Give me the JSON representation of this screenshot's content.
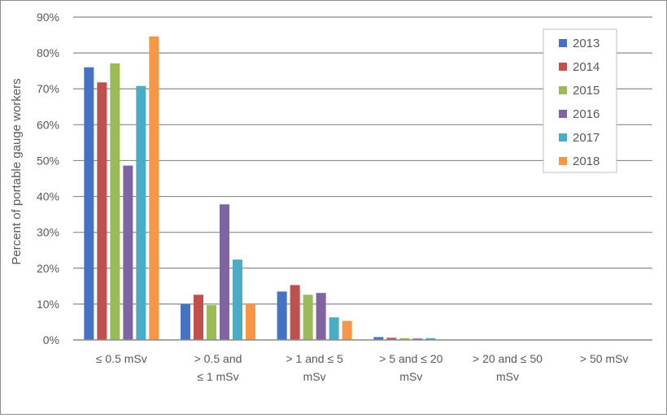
{
  "chart_data": {
    "type": "bar",
    "title": "",
    "xlabel": "",
    "ylabel": "Percent of portable gauge workers",
    "ylim": [
      0,
      90
    ],
    "y_ticks": [
      "0%",
      "10%",
      "20%",
      "30%",
      "40%",
      "50%",
      "60%",
      "70%",
      "80%",
      "90%"
    ],
    "grid": true,
    "legend_position": "top-right",
    "categories": [
      [
        "≤ 0.5 mSv"
      ],
      [
        "> 0.5 and",
        "≤ 1 mSv"
      ],
      [
        "> 1 and ≤ 5",
        "mSv"
      ],
      [
        "> 5 and ≤ 20",
        "mSv"
      ],
      [
        "> 20 and ≤ 50",
        "mSv"
      ],
      [
        "> 50 mSv"
      ]
    ],
    "series": [
      {
        "name": "2013",
        "color": "#4472C4",
        "values": [
          76.0,
          10.0,
          13.5,
          0.8,
          0.0,
          0.0
        ]
      },
      {
        "name": "2014",
        "color": "#C0504D",
        "values": [
          71.8,
          12.6,
          15.3,
          0.6,
          0.0,
          0.0
        ]
      },
      {
        "name": "2015",
        "color": "#9BBB59",
        "values": [
          77.1,
          9.7,
          12.6,
          0.5,
          0.0,
          0.0
        ]
      },
      {
        "name": "2016",
        "color": "#8064A2",
        "values": [
          48.6,
          37.8,
          13.1,
          0.4,
          0.0,
          0.0
        ]
      },
      {
        "name": "2017",
        "color": "#4BACC6",
        "values": [
          70.8,
          22.4,
          6.3,
          0.5,
          0.0,
          0.0
        ]
      },
      {
        "name": "2018",
        "color": "#F79646",
        "values": [
          84.6,
          10.0,
          5.3,
          0.0,
          0.0,
          0.0
        ]
      }
    ]
  }
}
